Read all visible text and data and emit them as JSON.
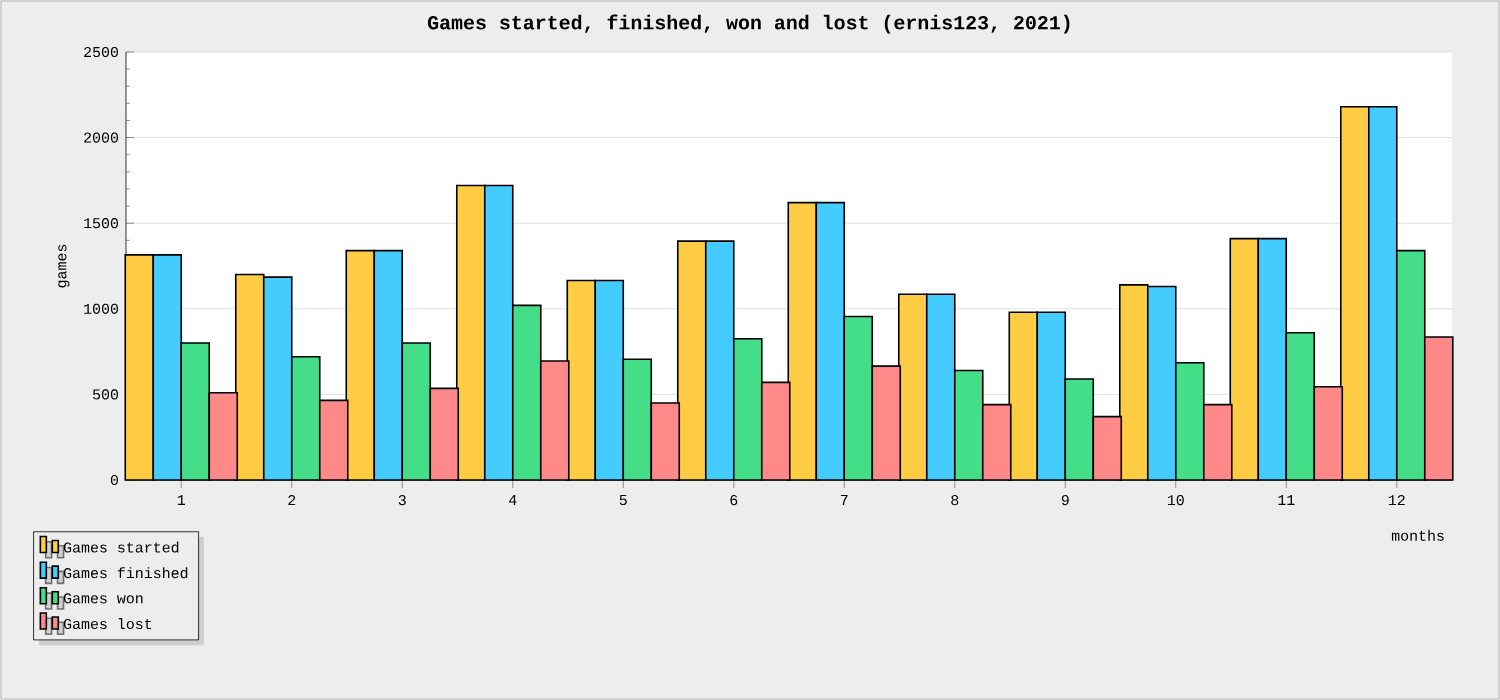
{
  "chart_data": {
    "type": "bar",
    "title": "Games started, finished, won and lost (ernis123, 2021)",
    "xlabel": "months",
    "ylabel": "games",
    "categories": [
      "1",
      "2",
      "3",
      "4",
      "5",
      "6",
      "7",
      "8",
      "9",
      "10",
      "11",
      "12"
    ],
    "series": [
      {
        "name": "Games started",
        "color": "#ffcc44",
        "values": [
          1315,
          1200,
          1340,
          1720,
          1165,
          1395,
          1620,
          1085,
          980,
          1140,
          1410,
          2180
        ]
      },
      {
        "name": "Games finished",
        "color": "#44ccff",
        "values": [
          1315,
          1185,
          1340,
          1720,
          1165,
          1395,
          1620,
          1085,
          980,
          1130,
          1410,
          2180
        ]
      },
      {
        "name": "Games won",
        "color": "#44dd88",
        "values": [
          800,
          720,
          800,
          1020,
          705,
          825,
          955,
          640,
          590,
          685,
          860,
          1340
        ]
      },
      {
        "name": "Games lost",
        "color": "#ff8888",
        "values": [
          510,
          465,
          535,
          695,
          450,
          570,
          665,
          440,
          370,
          440,
          545,
          835
        ]
      }
    ],
    "ylim": [
      0,
      2500
    ],
    "yticks": [
      0,
      500,
      1000,
      1500,
      2000,
      2500
    ],
    "grid": "y",
    "legend": "bottom left"
  }
}
